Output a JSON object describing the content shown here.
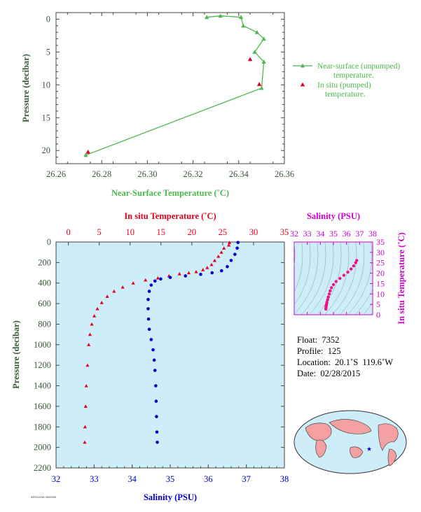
{
  "top_chart": {
    "xlabel": "Near-Surface Temperature (˚C)",
    "ylabel": "Pressure (decibar)",
    "xticks": [
      "26.26",
      "26.28",
      "26.30",
      "26.32",
      "26.34",
      "26.36"
    ],
    "yticks": [
      "0",
      "5",
      "10",
      "15",
      "20"
    ],
    "legend": {
      "near_surface": "Near-surface (unpumped)",
      "near_surface_2": "temperature.",
      "in_situ": "In situ (pumped)",
      "in_situ_2": "temperature."
    },
    "colors": {
      "near_surface": "#4db84d",
      "in_situ": "#e8001c",
      "axis_text": "#3a5a3a"
    }
  },
  "main_chart": {
    "top_xlabel": "In situ Temperature (˚C)",
    "bottom_xlabel": "Salinity (PSU)",
    "ylabel": "Pressure (decibar)",
    "temp_ticks": [
      "0",
      "5",
      "10",
      "15",
      "20",
      "25",
      "30",
      "35"
    ],
    "sal_ticks": [
      "32",
      "33",
      "34",
      "35",
      "36",
      "37",
      "38"
    ],
    "pressure_ticks": [
      "0",
      "200",
      "400",
      "600",
      "800",
      "1000",
      "1200",
      "1400",
      "1600",
      "1800",
      "2000",
      "2200"
    ],
    "colors": {
      "background": "#cdeef8",
      "temperature": "#e8001c",
      "salinity": "#0000d0",
      "pressure_axis_text": "#3a5a3a"
    }
  },
  "ts_diagram": {
    "title": "Salinity (PSU)",
    "ylabel": "In situ Temperature (˚C)",
    "xticks": [
      "32",
      "33",
      "34",
      "35",
      "36",
      "37",
      "38"
    ],
    "yticks": [
      "0",
      "5",
      "10",
      "15",
      "20",
      "25",
      "30",
      "35"
    ],
    "colors": {
      "axis": "#cc00cc",
      "points": "#ee1188"
    }
  },
  "info": {
    "float": "Float:  7352",
    "profile": "Profile:  125",
    "location": "Location:  20.1˚S  119.6˚W",
    "date": "Date:  02/28/2015"
  },
  "stamp": "ARGO/UW 0000000",
  "map": {
    "marker_icon": "star-icon",
    "ocean": "#cdeef8",
    "land": "#f2a0a0"
  },
  "chart_data": [
    {
      "type": "line",
      "title": "",
      "xlabel": "Near-Surface Temperature (˚C)",
      "ylabel": "Pressure (decibar)",
      "xlim": [
        26.26,
        26.36
      ],
      "ylim": [
        22,
        -1
      ],
      "series": [
        {
          "name": "Near-surface (unpumped) temperature.",
          "x": [
            26.326,
            26.332,
            26.341,
            26.342,
            26.348,
            26.351,
            26.347,
            26.351,
            26.35,
            26.273
          ],
          "y": [
            -0.3,
            -0.5,
            -0.3,
            1.0,
            2.0,
            3.0,
            5.0,
            6.5,
            10.5,
            20.7
          ]
        },
        {
          "name": "In situ (pumped) temperature.",
          "x": [
            26.345,
            26.349,
            26.274
          ],
          "y": [
            6.1,
            9.9,
            20.2
          ]
        }
      ]
    },
    {
      "type": "scatter",
      "title": "",
      "ylabel": "Pressure (decibar)",
      "ylim": [
        2200,
        0
      ],
      "series": [
        {
          "name": "In situ Temperature (˚C)",
          "axis": "top",
          "xlim": [
            -2,
            35
          ],
          "x": [
            26.1,
            26.0,
            25.2,
            24.8,
            24.3,
            23.7,
            23.2,
            22.5,
            21.8,
            20.7,
            19.5,
            18.0,
            16.3,
            14.5,
            12.5,
            10.5,
            8.8,
            7.4,
            6.3,
            5.4,
            4.7,
            4.2,
            3.8,
            3.5,
            3.3,
            3.1,
            2.9,
            2.8,
            2.7,
            2.65
          ],
          "y": [
            5,
            30,
            60,
            100,
            140,
            180,
            220,
            250,
            270,
            290,
            300,
            310,
            330,
            350,
            370,
            400,
            440,
            480,
            530,
            590,
            650,
            720,
            800,
            900,
            1000,
            1200,
            1400,
            1600,
            1800,
            1950
          ]
        },
        {
          "name": "Salinity (PSU)",
          "axis": "bottom",
          "xlim": [
            32,
            38
          ],
          "x": [
            36.78,
            36.76,
            36.7,
            36.6,
            36.5,
            36.35,
            36.1,
            35.8,
            35.4,
            35.0,
            34.75,
            34.6,
            34.5,
            34.45,
            34.42,
            34.42,
            34.43,
            34.45,
            34.5,
            34.55,
            34.58,
            34.6,
            34.62,
            34.63,
            34.64,
            34.65,
            34.66
          ],
          "y": [
            5,
            60,
            120,
            180,
            240,
            280,
            300,
            315,
            330,
            345,
            360,
            380,
            420,
            480,
            560,
            650,
            750,
            850,
            950,
            1050,
            1150,
            1250,
            1400,
            1550,
            1700,
            1850,
            1950
          ]
        }
      ]
    },
    {
      "type": "scatter",
      "title": "Salinity (PSU)",
      "xlabel": "Salinity (PSU)",
      "ylabel": "In situ Temperature (˚C)",
      "xlim": [
        32,
        38
      ],
      "ylim": [
        0,
        35
      ],
      "series": [
        {
          "name": "T-S",
          "x": [
            36.78,
            36.7,
            36.55,
            36.35,
            36.1,
            35.8,
            35.5,
            35.2,
            35.0,
            34.85,
            34.75,
            34.68,
            34.6,
            34.55,
            34.5,
            34.48,
            34.45,
            34.44,
            34.43,
            34.42
          ],
          "y": [
            26.1,
            25.0,
            23.5,
            22.0,
            20.5,
            19.0,
            17.5,
            16.0,
            14.5,
            13.0,
            11.5,
            10.0,
            8.5,
            7.2,
            6.0,
            5.2,
            4.5,
            4.0,
            3.3,
            2.7
          ]
        }
      ]
    }
  ]
}
